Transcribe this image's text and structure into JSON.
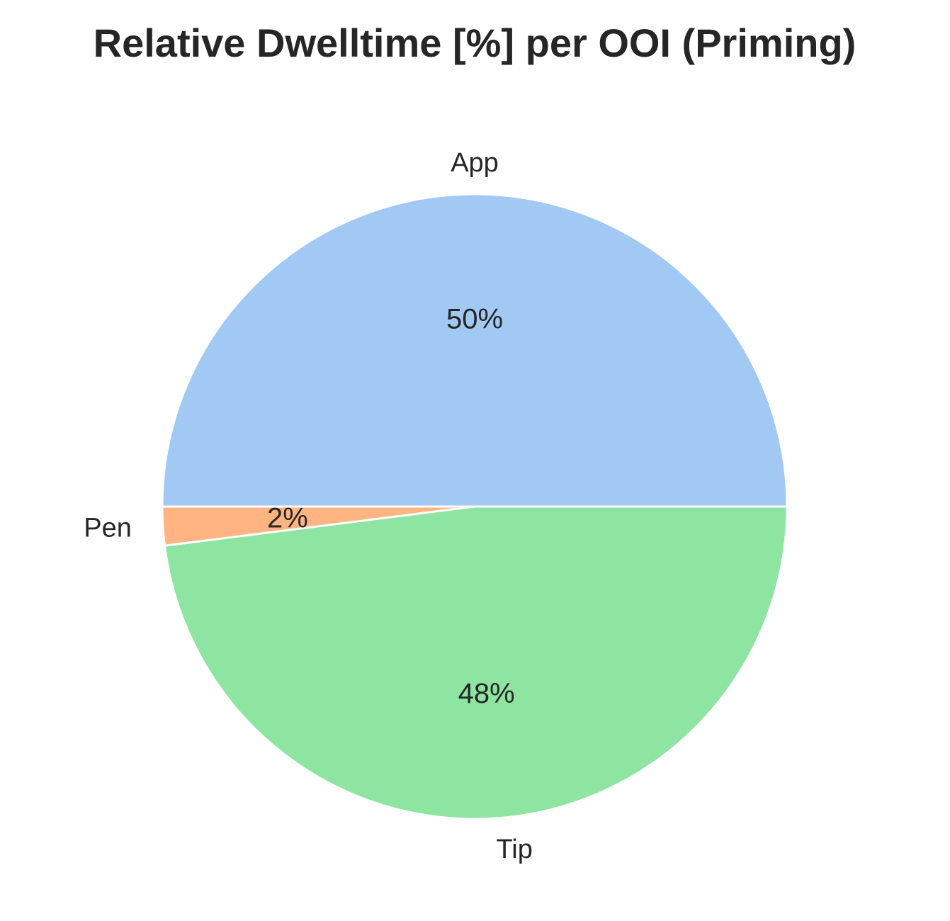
{
  "chart_data": {
    "type": "pie",
    "title": "Relative Dwelltime [%] per OOI (Priming)",
    "slices": [
      {
        "label": "App",
        "value": 50,
        "pct_label": "50%",
        "color": "#a1c9f4"
      },
      {
        "label": "Pen",
        "value": 2,
        "pct_label": "2%",
        "color": "#ffb482"
      },
      {
        "label": "Tip",
        "value": 48,
        "pct_label": "48%",
        "color": "#8de5a1"
      }
    ],
    "start_angle_deg": 0,
    "direction": "counterclockwise",
    "legend": "none"
  }
}
